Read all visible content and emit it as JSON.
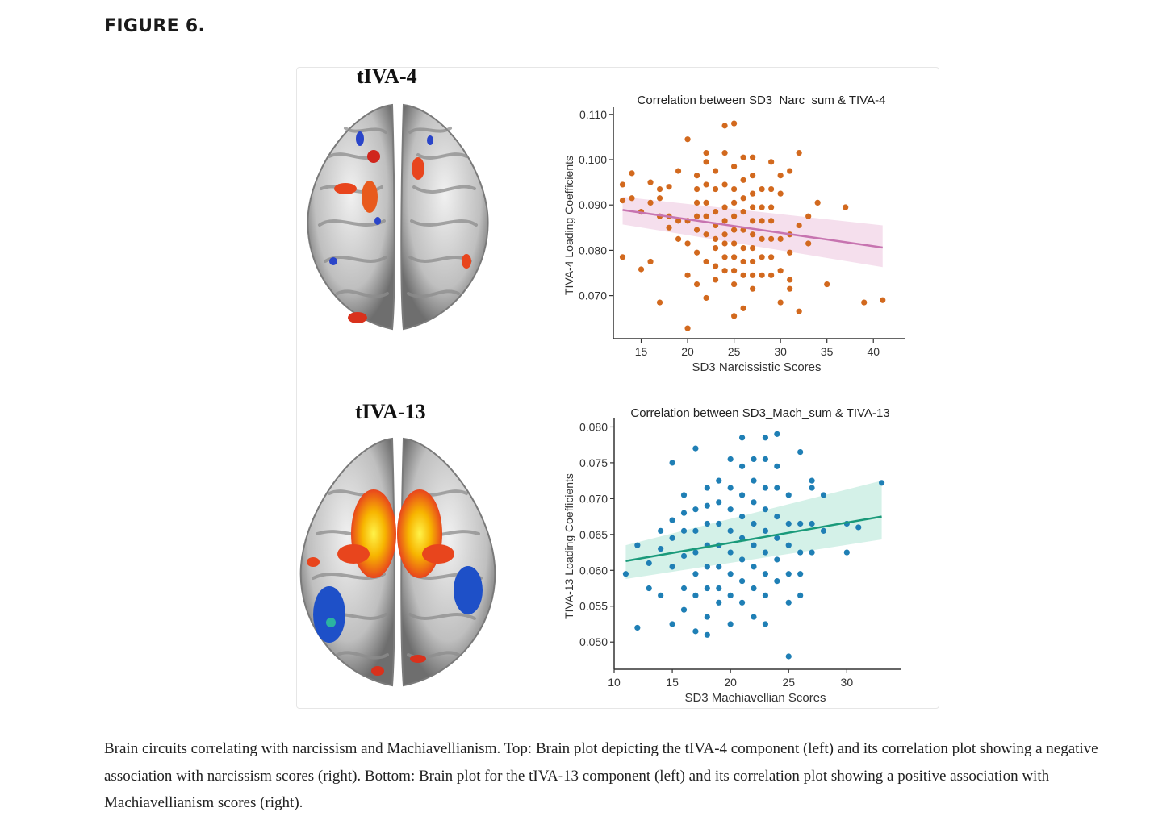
{
  "figure": {
    "label": "FIGURE 6.",
    "caption": "Brain circuits correlating with narcissism and Machiavellianism. Top: Brain plot depicting the tIVA-4 component (left) and its correlation plot showing a negative association with narcissism scores (right). Bottom: Brain plot for the tIVA-13 component (left) and its correlation plot showing a positive association with Machiavellianism scores (right)."
  },
  "brains": [
    {
      "title": "tIVA-4"
    },
    {
      "title": "tIVA-13"
    }
  ],
  "colors": {
    "narc_points": "#d2691e",
    "narc_line": "#c774b0",
    "narc_band": "#f3d9ea",
    "mach_points": "#1f7fb5",
    "mach_line": "#1a9a7a",
    "mach_band": "#cdeee4"
  },
  "chart_data": [
    {
      "type": "scatter",
      "title": "Correlation between SD3_Narc_sum & TIVA-4",
      "xlabel": "SD3 Narcissistic Scores",
      "ylabel": "TIVA-4 Loading Coefficients",
      "xlim": [
        12,
        42.5
      ],
      "ylim": [
        0.0605,
        0.1105
      ],
      "xticks": [
        15,
        20,
        25,
        30,
        35,
        40
      ],
      "yticks": [
        0.07,
        0.08,
        0.09,
        0.1,
        0.11
      ],
      "ytick_labels": [
        "0.070",
        "0.080",
        "0.090",
        "0.100",
        "0.110"
      ],
      "regression": {
        "x": [
          13,
          41
        ],
        "y": [
          0.0889,
          0.0806
        ]
      },
      "ci_band": {
        "x": [
          13,
          41
        ],
        "upper": [
          0.0918,
          0.0855
        ],
        "lower": [
          0.0857,
          0.0763
        ]
      },
      "points": [
        [
          13,
          0.0945
        ],
        [
          13,
          0.091
        ],
        [
          13,
          0.0785
        ],
        [
          14,
          0.097
        ],
        [
          14,
          0.0915
        ],
        [
          15,
          0.0885
        ],
        [
          15,
          0.0758
        ],
        [
          16,
          0.095
        ],
        [
          16,
          0.0905
        ],
        [
          16,
          0.0775
        ],
        [
          17,
          0.0935
        ],
        [
          17,
          0.0915
        ],
        [
          17,
          0.0875
        ],
        [
          17,
          0.0685
        ],
        [
          18,
          0.094
        ],
        [
          18,
          0.0875
        ],
        [
          18,
          0.085
        ],
        [
          19,
          0.0975
        ],
        [
          19,
          0.0865
        ],
        [
          19,
          0.0825
        ],
        [
          20,
          0.1045
        ],
        [
          20,
          0.0865
        ],
        [
          20,
          0.0815
        ],
        [
          20,
          0.0745
        ],
        [
          20,
          0.0628
        ],
        [
          21,
          0.0965
        ],
        [
          21,
          0.0935
        ],
        [
          21,
          0.0905
        ],
        [
          21,
          0.0875
        ],
        [
          21,
          0.0845
        ],
        [
          21,
          0.0795
        ],
        [
          21,
          0.0725
        ],
        [
          22,
          0.1015
        ],
        [
          22,
          0.0995
        ],
        [
          22,
          0.0945
        ],
        [
          22,
          0.0905
        ],
        [
          22,
          0.0875
        ],
        [
          22,
          0.0835
        ],
        [
          22,
          0.0775
        ],
        [
          22,
          0.0695
        ],
        [
          23,
          0.0975
        ],
        [
          23,
          0.0935
        ],
        [
          23,
          0.0885
        ],
        [
          23,
          0.0855
        ],
        [
          23,
          0.0825
        ],
        [
          23,
          0.0805
        ],
        [
          23,
          0.0765
        ],
        [
          23,
          0.0735
        ],
        [
          24,
          0.1075
        ],
        [
          24,
          0.1015
        ],
        [
          24,
          0.0945
        ],
        [
          24,
          0.0895
        ],
        [
          24,
          0.0865
        ],
        [
          24,
          0.0835
        ],
        [
          24,
          0.0815
        ],
        [
          24,
          0.0785
        ],
        [
          24,
          0.0755
        ],
        [
          25,
          0.108
        ],
        [
          25,
          0.0985
        ],
        [
          25,
          0.0935
        ],
        [
          25,
          0.0905
        ],
        [
          25,
          0.0875
        ],
        [
          25,
          0.0845
        ],
        [
          25,
          0.0815
        ],
        [
          25,
          0.0785
        ],
        [
          25,
          0.0755
        ],
        [
          25,
          0.0725
        ],
        [
          25,
          0.0655
        ],
        [
          26,
          0.1005
        ],
        [
          26,
          0.0955
        ],
        [
          26,
          0.0915
        ],
        [
          26,
          0.0885
        ],
        [
          26,
          0.0845
        ],
        [
          26,
          0.0805
        ],
        [
          26,
          0.0775
        ],
        [
          26,
          0.0745
        ],
        [
          26,
          0.0672
        ],
        [
          27,
          0.1005
        ],
        [
          27,
          0.0965
        ],
        [
          27,
          0.0925
        ],
        [
          27,
          0.0895
        ],
        [
          27,
          0.0865
        ],
        [
          27,
          0.0835
        ],
        [
          27,
          0.0805
        ],
        [
          27,
          0.0775
        ],
        [
          27,
          0.0745
        ],
        [
          27,
          0.0715
        ],
        [
          28,
          0.0935
        ],
        [
          28,
          0.0895
        ],
        [
          28,
          0.0865
        ],
        [
          28,
          0.0825
        ],
        [
          28,
          0.0785
        ],
        [
          28,
          0.0745
        ],
        [
          29,
          0.0995
        ],
        [
          29,
          0.0935
        ],
        [
          29,
          0.0895
        ],
        [
          29,
          0.0865
        ],
        [
          29,
          0.0825
        ],
        [
          29,
          0.0785
        ],
        [
          29,
          0.0745
        ],
        [
          30,
          0.0965
        ],
        [
          30,
          0.0925
        ],
        [
          30,
          0.0825
        ],
        [
          30,
          0.0755
        ],
        [
          30,
          0.0685
        ],
        [
          31,
          0.0975
        ],
        [
          31,
          0.0835
        ],
        [
          31,
          0.0795
        ],
        [
          31,
          0.0735
        ],
        [
          31,
          0.0715
        ],
        [
          32,
          0.1015
        ],
        [
          32,
          0.0855
        ],
        [
          32,
          0.0665
        ],
        [
          33,
          0.0875
        ],
        [
          33,
          0.0815
        ],
        [
          34,
          0.0905
        ],
        [
          35,
          0.0725
        ],
        [
          37,
          0.0895
        ],
        [
          39,
          0.0685
        ],
        [
          41,
          0.069
        ]
      ]
    },
    {
      "type": "scatter",
      "title": "Correlation between SD3_Mach_sum & TIVA-13",
      "xlabel": "SD3 Machiavellian Scores",
      "ylabel": "TIVA-13 Loading Coefficients",
      "xlim": [
        10,
        34
      ],
      "ylim": [
        0.0462,
        0.0805
      ],
      "xticks": [
        10,
        15,
        20,
        25,
        30
      ],
      "yticks": [
        0.05,
        0.055,
        0.06,
        0.065,
        0.07,
        0.075,
        0.08
      ],
      "ytick_labels": [
        "0.050",
        "0.055",
        "0.060",
        "0.065",
        "0.070",
        "0.075",
        "0.080"
      ],
      "regression": {
        "x": [
          11,
          33
        ],
        "y": [
          0.0613,
          0.0675
        ]
      },
      "ci_band": {
        "x": [
          11,
          33
        ],
        "upper": [
          0.0635,
          0.0725
        ],
        "lower": [
          0.0588,
          0.0643
        ]
      },
      "points": [
        [
          11,
          0.0595
        ],
        [
          12,
          0.0635
        ],
        [
          12,
          0.052
        ],
        [
          13,
          0.061
        ],
        [
          13,
          0.0575
        ],
        [
          14,
          0.0655
        ],
        [
          14,
          0.063
        ],
        [
          14,
          0.0565
        ],
        [
          15,
          0.075
        ],
        [
          15,
          0.067
        ],
        [
          15,
          0.0645
        ],
        [
          15,
          0.0605
        ],
        [
          15,
          0.0525
        ],
        [
          16,
          0.0705
        ],
        [
          16,
          0.068
        ],
        [
          16,
          0.0655
        ],
        [
          16,
          0.062
        ],
        [
          16,
          0.0575
        ],
        [
          16,
          0.0545
        ],
        [
          17,
          0.077
        ],
        [
          17,
          0.0685
        ],
        [
          17,
          0.0655
        ],
        [
          17,
          0.0625
        ],
        [
          17,
          0.0595
        ],
        [
          17,
          0.0565
        ],
        [
          17,
          0.0515
        ],
        [
          18,
          0.0715
        ],
        [
          18,
          0.069
        ],
        [
          18,
          0.0665
        ],
        [
          18,
          0.0635
        ],
        [
          18,
          0.0605
        ],
        [
          18,
          0.0575
        ],
        [
          18,
          0.0535
        ],
        [
          18,
          0.051
        ],
        [
          19,
          0.0725
        ],
        [
          19,
          0.0695
        ],
        [
          19,
          0.0665
        ],
        [
          19,
          0.0635
        ],
        [
          19,
          0.0605
        ],
        [
          19,
          0.0575
        ],
        [
          19,
          0.0555
        ],
        [
          20,
          0.0755
        ],
        [
          20,
          0.0715
        ],
        [
          20,
          0.0685
        ],
        [
          20,
          0.0655
        ],
        [
          20,
          0.0625
        ],
        [
          20,
          0.0595
        ],
        [
          20,
          0.0565
        ],
        [
          20,
          0.0525
        ],
        [
          21,
          0.0785
        ],
        [
          21,
          0.0745
        ],
        [
          21,
          0.0705
        ],
        [
          21,
          0.0675
        ],
        [
          21,
          0.0645
        ],
        [
          21,
          0.0615
        ],
        [
          21,
          0.0585
        ],
        [
          21,
          0.0555
        ],
        [
          22,
          0.0755
        ],
        [
          22,
          0.0725
        ],
        [
          22,
          0.0695
        ],
        [
          22,
          0.0665
        ],
        [
          22,
          0.0635
        ],
        [
          22,
          0.0605
        ],
        [
          22,
          0.0575
        ],
        [
          22,
          0.0535
        ],
        [
          23,
          0.0785
        ],
        [
          23,
          0.0755
        ],
        [
          23,
          0.0715
        ],
        [
          23,
          0.0685
        ],
        [
          23,
          0.0655
        ],
        [
          23,
          0.0625
        ],
        [
          23,
          0.0595
        ],
        [
          23,
          0.0565
        ],
        [
          23,
          0.0525
        ],
        [
          24,
          0.079
        ],
        [
          24,
          0.0745
        ],
        [
          24,
          0.0715
        ],
        [
          24,
          0.0675
        ],
        [
          24,
          0.0645
        ],
        [
          24,
          0.0615
        ],
        [
          24,
          0.0585
        ],
        [
          25,
          0.0705
        ],
        [
          25,
          0.0665
        ],
        [
          25,
          0.0635
        ],
        [
          25,
          0.0595
        ],
        [
          25,
          0.0555
        ],
        [
          25,
          0.048
        ],
        [
          26,
          0.0765
        ],
        [
          26,
          0.0665
        ],
        [
          26,
          0.0625
        ],
        [
          26,
          0.0595
        ],
        [
          26,
          0.0565
        ],
        [
          27,
          0.0725
        ],
        [
          27,
          0.0715
        ],
        [
          27,
          0.0665
        ],
        [
          27,
          0.0625
        ],
        [
          28,
          0.0705
        ],
        [
          28,
          0.0655
        ],
        [
          30,
          0.0665
        ],
        [
          30,
          0.0625
        ],
        [
          31,
          0.066
        ],
        [
          33,
          0.0722
        ]
      ]
    }
  ]
}
